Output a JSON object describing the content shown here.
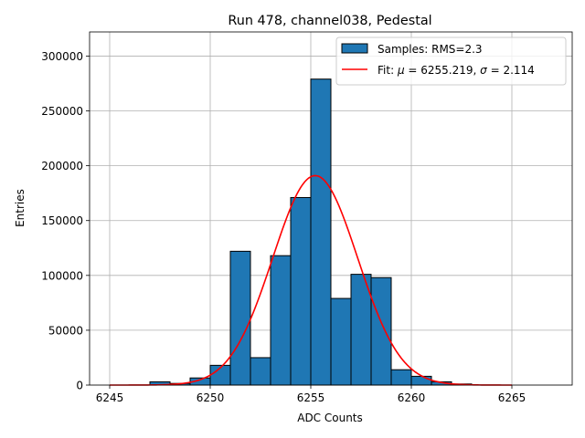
{
  "chart_data": {
    "type": "bar",
    "title": "Run 478, channel038, Pedestal",
    "xlabel": "ADC Counts",
    "ylabel": "Entries",
    "xlim": [
      6244,
      6268
    ],
    "ylim": [
      0,
      322000
    ],
    "xticks": [
      6245,
      6250,
      6255,
      6260,
      6265
    ],
    "xtick_labels": [
      "6245",
      "6250",
      "6255",
      "6260",
      "6265"
    ],
    "yticks": [
      0,
      50000,
      100000,
      150000,
      200000,
      250000,
      300000
    ],
    "ytick_labels": [
      "0",
      "50000",
      "100000",
      "150000",
      "200000",
      "250000",
      "300000"
    ],
    "grid": true,
    "bins": [
      {
        "left": 6245,
        "value": 0
      },
      {
        "left": 6246,
        "value": 0
      },
      {
        "left": 6247,
        "value": 3000
      },
      {
        "left": 6248,
        "value": 1500
      },
      {
        "left": 6249,
        "value": 6500
      },
      {
        "left": 6250,
        "value": 18000
      },
      {
        "left": 6251,
        "value": 122000
      },
      {
        "left": 6252,
        "value": 25000
      },
      {
        "left": 6253,
        "value": 118000
      },
      {
        "left": 6254,
        "value": 171000
      },
      {
        "left": 6255,
        "value": 279000
      },
      {
        "left": 6256,
        "value": 79000
      },
      {
        "left": 6257,
        "value": 101000
      },
      {
        "left": 6258,
        "value": 98000
      },
      {
        "left": 6259,
        "value": 14000
      },
      {
        "left": 6260,
        "value": 8000
      },
      {
        "left": 6261,
        "value": 3000
      },
      {
        "left": 6262,
        "value": 1000
      },
      {
        "left": 6263,
        "value": 0
      },
      {
        "left": 6264,
        "value": 0
      }
    ],
    "bin_width": 1,
    "fit": {
      "mu": 6255.219,
      "sigma": 2.114,
      "amplitude": 191000,
      "x_range": [
        6245,
        6265
      ]
    },
    "series": [
      {
        "name": "Samples: RMS=2.3",
        "kind": "histogram",
        "color": "#1f77b4"
      },
      {
        "name": "Fit: μ = 6255.219, σ = 2.114",
        "kind": "line",
        "color": "#ff0000"
      }
    ],
    "legend": {
      "position": "top-right",
      "hist_label": "Samples: RMS=2.3",
      "fit_label_prefix": "Fit: ",
      "fit_mu_symbol": "μ",
      "fit_mu_value": " = 6255.219, ",
      "fit_sigma_symbol": "σ",
      "fit_sigma_value": " = 2.114"
    }
  }
}
